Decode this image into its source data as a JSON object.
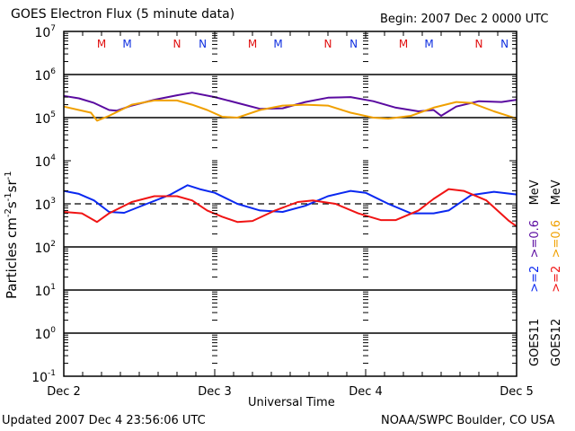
{
  "header": {
    "title": "GOES Electron Flux (5 minute data)",
    "begin": "Begin: 2007 Dec 2 0000 UTC"
  },
  "footer": {
    "updated": "Updated 2007 Dec  4 23:56:06 UTC",
    "credit": "NOAA/SWPC Boulder, CO USA"
  },
  "colors": {
    "goes11_06": "#5a0aa0",
    "goes12_06": "#f0a000",
    "goes11_2": "#0a28f0",
    "goes12_2": "#f01414",
    "marker_goes12": "#e01010",
    "marker_goes11": "#1030e0"
  },
  "legend": {
    "goes11": {
      "satellite": "GOES11",
      "ch2": ">=2",
      "ch06": ">=0.6",
      "unit": "MeV"
    },
    "goes12": {
      "satellite": "GOES12",
      "ch2": ">=2",
      "ch06": ">=0.6",
      "unit": "MeV"
    }
  },
  "chart_data": {
    "type": "line",
    "title": "GOES Electron Flux (5 minute data)",
    "xlabel": "Universal Time",
    "ylabel": "Particles cm-2 s-1 sr-1",
    "ylabel_parts": [
      "Particles cm",
      "-2",
      "s",
      "-1",
      "sr",
      "-1"
    ],
    "yscale": "log",
    "ylim": [
      0.1,
      10000000
    ],
    "xlim_days": [
      0,
      3
    ],
    "x_ticks": [
      "Dec 2",
      "Dec 3",
      "Dec 4",
      "Dec 5"
    ],
    "y_ticks": [
      {
        "base": "10",
        "exp": "7"
      },
      {
        "base": "10",
        "exp": "6"
      },
      {
        "base": "10",
        "exp": "5"
      },
      {
        "base": "10",
        "exp": "4"
      },
      {
        "base": "10",
        "exp": "3"
      },
      {
        "base": "10",
        "exp": "2"
      },
      {
        "base": "10",
        "exp": "1"
      },
      {
        "base": "10",
        "exp": "0"
      },
      {
        "base": "10",
        "exp": "-1"
      }
    ],
    "grid_solid_decades": [
      6,
      5,
      2,
      1,
      0
    ],
    "dashed_threshold": 1000,
    "local_time_markers": [
      {
        "label": "M",
        "sat": "GOES12",
        "day": 0.25
      },
      {
        "label": "M",
        "sat": "GOES11",
        "day": 0.42
      },
      {
        "label": "N",
        "sat": "GOES12",
        "day": 0.75
      },
      {
        "label": "N",
        "sat": "GOES11",
        "day": 0.92
      },
      {
        "label": "M",
        "sat": "GOES12",
        "day": 1.25
      },
      {
        "label": "M",
        "sat": "GOES11",
        "day": 1.42
      },
      {
        "label": "N",
        "sat": "GOES12",
        "day": 1.75
      },
      {
        "label": "N",
        "sat": "GOES11",
        "day": 1.92
      },
      {
        "label": "M",
        "sat": "GOES12",
        "day": 2.25
      },
      {
        "label": "M",
        "sat": "GOES11",
        "day": 2.42
      },
      {
        "label": "N",
        "sat": "GOES12",
        "day": 2.75
      },
      {
        "label": "N",
        "sat": "GOES11",
        "day": 2.92
      }
    ],
    "series": [
      {
        "name": "GOES11 >=0.6 MeV",
        "color_key": "goes11_06",
        "x": [
          0,
          0.1,
          0.2,
          0.3,
          0.35,
          0.45,
          0.6,
          0.75,
          0.85,
          1.0,
          1.15,
          1.3,
          1.45,
          1.6,
          1.75,
          1.9,
          2.05,
          2.2,
          2.35,
          2.45,
          2.5,
          2.6,
          2.75,
          2.9,
          3.0
        ],
        "values": [
          320000,
          280000,
          220000,
          150000,
          145000,
          190000,
          260000,
          330000,
          380000,
          300000,
          220000,
          160000,
          165000,
          230000,
          290000,
          300000,
          240000,
          170000,
          140000,
          150000,
          110000,
          180000,
          240000,
          230000,
          260000
        ]
      },
      {
        "name": "GOES12 >=0.6 MeV",
        "color_key": "goes12_06",
        "x": [
          0,
          0.1,
          0.18,
          0.22,
          0.3,
          0.45,
          0.6,
          0.75,
          0.85,
          0.95,
          1.05,
          1.15,
          1.3,
          1.45,
          1.6,
          1.75,
          1.9,
          2.05,
          2.15,
          2.3,
          2.45,
          2.6,
          2.7,
          2.85,
          3.0
        ],
        "values": [
          180000,
          150000,
          130000,
          85000,
          110000,
          200000,
          250000,
          250000,
          200000,
          150000,
          105000,
          100000,
          150000,
          190000,
          200000,
          190000,
          130000,
          100000,
          95000,
          110000,
          170000,
          230000,
          220000,
          140000,
          95000
        ]
      },
      {
        "name": "GOES11 >=2 MeV",
        "color_key": "goes11_2",
        "x": [
          0,
          0.1,
          0.2,
          0.3,
          0.4,
          0.55,
          0.7,
          0.82,
          0.9,
          1.0,
          1.15,
          1.3,
          1.45,
          1.6,
          1.75,
          1.9,
          2.0,
          2.15,
          2.3,
          2.45,
          2.55,
          2.7,
          2.85,
          3.0
        ],
        "values": [
          2000,
          1700,
          1200,
          650,
          620,
          1000,
          1600,
          2700,
          2200,
          1800,
          1000,
          700,
          650,
          900,
          1500,
          2000,
          1800,
          1000,
          600,
          600,
          700,
          1600,
          1900,
          1650
        ]
      },
      {
        "name": "GOES12 >=2 MeV",
        "color_key": "goes12_2",
        "x": [
          0,
          0.12,
          0.22,
          0.3,
          0.45,
          0.6,
          0.75,
          0.85,
          0.95,
          1.05,
          1.15,
          1.25,
          1.4,
          1.55,
          1.65,
          1.8,
          1.95,
          2.1,
          2.2,
          2.35,
          2.45,
          2.55,
          2.65,
          2.8,
          2.95,
          3.0
        ],
        "values": [
          650,
          600,
          380,
          600,
          1100,
          1500,
          1500,
          1200,
          700,
          500,
          380,
          400,
          700,
          1100,
          1200,
          1000,
          600,
          420,
          420,
          700,
          1300,
          2200,
          2000,
          1200,
          400,
          300
        ]
      }
    ]
  }
}
